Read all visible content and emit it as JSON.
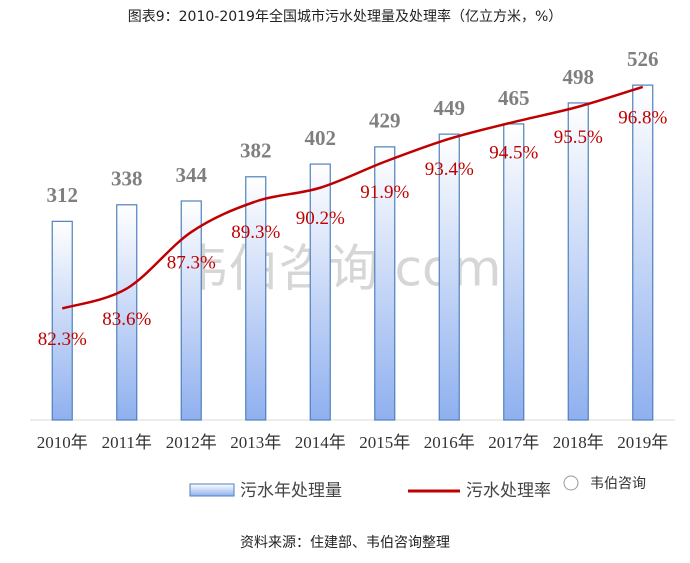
{
  "chart_data": {
    "type": "bar",
    "title": "图表9：2010-2019年全国城市污水处理量及处理率（亿立方米，%）",
    "categories": [
      "2010年",
      "2011年",
      "2012年",
      "2013年",
      "2014年",
      "2015年",
      "2016年",
      "2017年",
      "2018年",
      "2019年"
    ],
    "series": [
      {
        "name": "污水年处理量",
        "type": "bar",
        "color": "#4f81bd",
        "values": [
          312,
          338,
          344,
          382,
          402,
          429,
          449,
          465,
          498,
          526
        ]
      },
      {
        "name": "污水处理率",
        "type": "line",
        "axis": "y2",
        "color": "#c00000",
        "values": [
          82.3,
          83.6,
          87.3,
          89.3,
          90.2,
          91.9,
          93.4,
          94.5,
          95.5,
          96.8
        ],
        "value_labels": [
          "82.3%",
          "83.6%",
          "87.3%",
          "89.3%",
          "90.2%",
          "91.9%",
          "93.4%",
          "94.5%",
          "95.5%",
          "96.8%"
        ]
      }
    ],
    "ylim": [
      0,
      600
    ],
    "y2lim": [
      75,
      100
    ],
    "source": "资料来源：住建部、韦伯咨询整理",
    "watermark": "韦伯咨询.com",
    "logo": "韦伯咨询"
  }
}
